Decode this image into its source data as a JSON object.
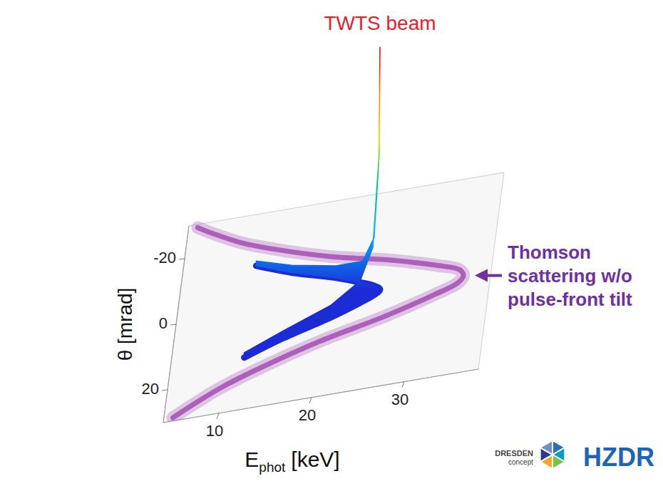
{
  "chart_data": {
    "type": "surface3d",
    "xlabel": "E",
    "xlabel_sub": "phot",
    "xlabel_unit": "[keV]",
    "ylabel": "θ [mrad]",
    "xlim": [
      4,
      38
    ],
    "xticks": [
      10,
      20,
      30
    ],
    "ylim": [
      -30,
      30
    ],
    "yticks": [
      -20,
      0,
      20
    ],
    "zlim": [
      0,
      1
    ],
    "series": [
      {
        "name": "TWTS beam",
        "color": "#1b2bd6",
        "x": [
          12,
          16,
          21,
          24,
          25.3,
          25.9,
          26,
          25.9,
          25.3,
          24,
          21,
          16,
          12
        ],
        "values": [
          -14,
          -10,
          -6,
          -3,
          -1.5,
          -0.5,
          0,
          0.5,
          1.5,
          3,
          6,
          10,
          14
        ],
        "height": [
          0.02,
          0.03,
          0.05,
          0.09,
          0.2,
          0.55,
          1,
          0.55,
          0.2,
          0.09,
          0.05,
          0.03,
          0.02
        ]
      },
      {
        "name": "Thomson scattering w/o pulse-front tilt",
        "color": "#9b3fae",
        "x": [
          5,
          7,
          10,
          14,
          20,
          27,
          32,
          34.5,
          35,
          34.5,
          32,
          27,
          20,
          14,
          10,
          7,
          5
        ],
        "values": [
          -29,
          -26,
          -22,
          -18,
          -13,
          -8.5,
          -4.5,
          -2,
          0,
          2,
          4.5,
          8.5,
          13,
          18,
          22,
          26,
          29
        ]
      }
    ],
    "logos": [
      {
        "lines": [
          "DRESDEN",
          "concept"
        ]
      },
      {
        "lines": [
          "HZDR"
        ]
      }
    ]
  }
}
